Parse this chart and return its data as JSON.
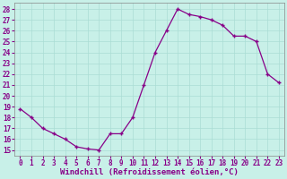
{
  "x": [
    0,
    1,
    2,
    3,
    4,
    5,
    6,
    7,
    8,
    9,
    10,
    11,
    12,
    13,
    14,
    15,
    16,
    17,
    18,
    19,
    20,
    21,
    22,
    23
  ],
  "y": [
    18.8,
    18.0,
    17.0,
    16.5,
    16.0,
    15.3,
    15.1,
    15.0,
    16.5,
    16.5,
    18.0,
    21.0,
    24.0,
    26.0,
    28.0,
    27.5,
    27.3,
    27.0,
    26.5,
    25.5,
    25.5,
    25.0,
    22.0,
    21.2
  ],
  "line_color": "#880088",
  "marker": "+",
  "marker_color": "#880088",
  "xlabel": "Windchill (Refroidissement éolien,°C)",
  "ylabel": "",
  "title": "",
  "xlim": [
    -0.5,
    23.5
  ],
  "ylim": [
    14.5,
    28.6
  ],
  "yticks": [
    15,
    16,
    17,
    18,
    19,
    20,
    21,
    22,
    23,
    24,
    25,
    26,
    27,
    28
  ],
  "xticks": [
    0,
    1,
    2,
    3,
    4,
    5,
    6,
    7,
    8,
    9,
    10,
    11,
    12,
    13,
    14,
    15,
    16,
    17,
    18,
    19,
    20,
    21,
    22,
    23
  ],
  "bg_color": "#c8f0e8",
  "grid_color": "#aaddd4",
  "tick_fontsize": 5.5,
  "xlabel_fontsize": 6.5,
  "line_width": 0.9,
  "marker_size": 3.5
}
